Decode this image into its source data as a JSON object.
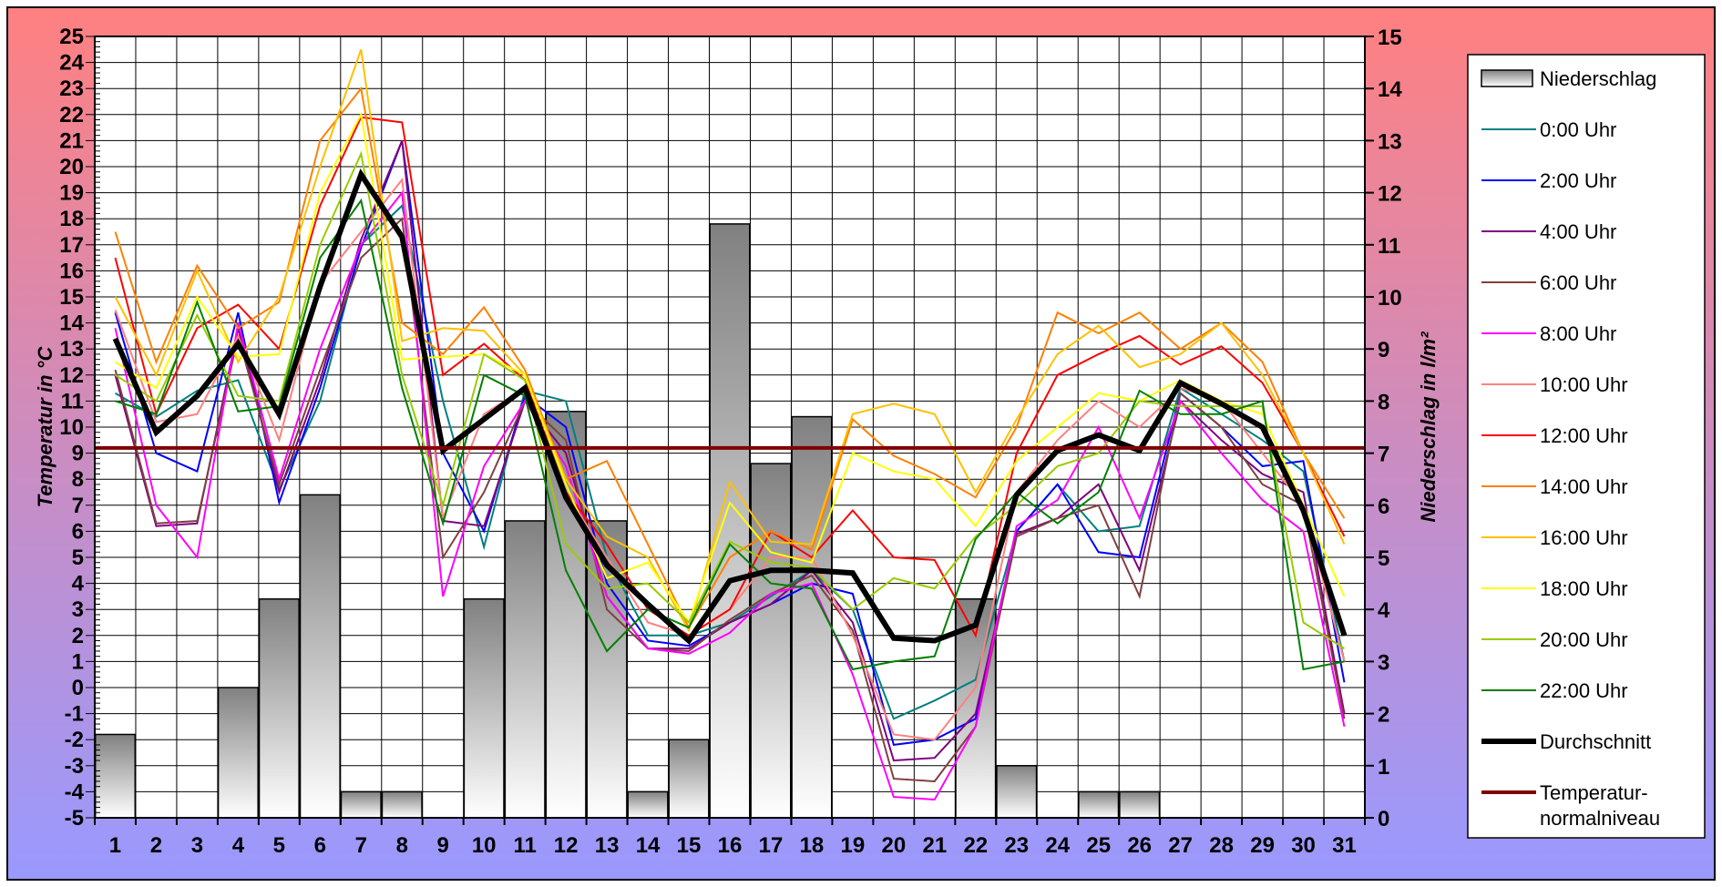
{
  "chart_data": {
    "type": "bar+line",
    "categories": [
      "1",
      "2",
      "3",
      "4",
      "5",
      "6",
      "7",
      "8",
      "9",
      "10",
      "11",
      "12",
      "13",
      "14",
      "15",
      "16",
      "17",
      "18",
      "19",
      "20",
      "21",
      "22",
      "23",
      "24",
      "25",
      "26",
      "27",
      "28",
      "29",
      "30",
      "31"
    ],
    "y_left": {
      "label": "Temperatur in °C",
      "min": -5,
      "max": 25,
      "step": 1
    },
    "y_right": {
      "label": "Niederschlag in l/m²",
      "min": 0,
      "max": 15,
      "step": 1
    },
    "precipitation": {
      "name": "Niederschlag",
      "axis": "right",
      "values": [
        1.6,
        0,
        0,
        2.5,
        4.2,
        6.2,
        0.5,
        0.5,
        0,
        4.2,
        5.7,
        7.8,
        5.7,
        0.5,
        1.5,
        11.4,
        6.8,
        7.7,
        0,
        0,
        0,
        4.2,
        1.0,
        0,
        0.5,
        0.5,
        0,
        0,
        0,
        0,
        0
      ]
    },
    "series": [
      {
        "name": "0:00 Uhr",
        "color": "#008080",
        "values": [
          11.3,
          10.4,
          11.4,
          11.8,
          7.6,
          11.0,
          17.0,
          18.5,
          11.0,
          5.4,
          11.4,
          11.0,
          5.0,
          2.0,
          2.0,
          2.5,
          3.5,
          4.5,
          3.0,
          -1.2,
          -0.5,
          0.3,
          6.0,
          7.8,
          6.0,
          6.2,
          11.5,
          10.5,
          9.5,
          8.3,
          1.0
        ]
      },
      {
        "name": "2:00 Uhr",
        "color": "#0000FF",
        "values": [
          14.4,
          9.0,
          8.3,
          14.4,
          7.1,
          11.5,
          16.9,
          21.0,
          9.0,
          6.0,
          11.2,
          10.0,
          4.0,
          1.8,
          1.6,
          2.5,
          3.2,
          4.0,
          3.6,
          -2.2,
          -2.0,
          -1.2,
          6.0,
          7.8,
          5.2,
          5.0,
          11.3,
          10.0,
          8.5,
          8.7,
          0.2
        ]
      },
      {
        "name": "4:00 Uhr",
        "color": "#800080",
        "values": [
          12.0,
          6.2,
          6.3,
          13.8,
          7.5,
          11.8,
          17.2,
          21.0,
          6.4,
          6.2,
          11.0,
          9.0,
          3.5,
          1.5,
          1.5,
          2.5,
          3.2,
          4.5,
          2.5,
          -2.8,
          -2.7,
          -1.0,
          5.9,
          6.5,
          7.8,
          4.5,
          11.0,
          9.5,
          8.2,
          7.5,
          -1.0
        ]
      },
      {
        "name": "6:00 Uhr",
        "color": "#804040",
        "values": [
          12.2,
          6.3,
          6.4,
          13.5,
          7.8,
          12.2,
          16.5,
          18.0,
          5.0,
          7.5,
          11.0,
          9.5,
          3.0,
          1.5,
          1.4,
          2.6,
          3.6,
          4.3,
          2.2,
          -3.5,
          -3.6,
          -1.5,
          5.8,
          6.5,
          7.0,
          3.5,
          11.3,
          10.0,
          7.8,
          7.0,
          -1.2
        ]
      },
      {
        "name": "8:00 Uhr",
        "color": "#FF00FF",
        "values": [
          13.8,
          7.0,
          5.0,
          14.0,
          8.0,
          13.0,
          17.0,
          19.0,
          3.5,
          8.5,
          11.0,
          8.5,
          3.5,
          1.5,
          1.3,
          2.1,
          3.6,
          4.0,
          0.5,
          -4.2,
          -4.3,
          -1.5,
          6.2,
          7.2,
          10.0,
          6.5,
          11.0,
          9.0,
          7.2,
          6.0,
          -1.5
        ]
      },
      {
        "name": "10:00 Uhr",
        "color": "#FF8080",
        "values": [
          14.5,
          10.2,
          10.5,
          13.5,
          9.5,
          15.5,
          17.5,
          19.5,
          6.5,
          10.5,
          11.5,
          7.5,
          5.0,
          2.5,
          2.0,
          3.0,
          5.0,
          5.0,
          2.0,
          -1.8,
          -2.0,
          0.0,
          7.5,
          9.5,
          11.0,
          10.0,
          11.5,
          11.0,
          9.0,
          7.0,
          1.0
        ]
      },
      {
        "name": "12:00 Uhr",
        "color": "#FF0000",
        "values": [
          16.5,
          10.5,
          13.8,
          14.7,
          13.0,
          18.5,
          21.9,
          21.7,
          12.0,
          13.2,
          11.8,
          7.5,
          5.5,
          3.0,
          2.0,
          3.0,
          6.0,
          5.0,
          6.8,
          5.0,
          4.9,
          2.0,
          9.0,
          12.0,
          12.8,
          13.5,
          12.4,
          13.1,
          11.7,
          9.0,
          5.8
        ]
      },
      {
        "name": "14:00 Uhr",
        "color": "#FF8000",
        "values": [
          17.5,
          12.5,
          16.2,
          13.8,
          14.8,
          21.0,
          23.0,
          14.0,
          12.8,
          14.6,
          12.2,
          8.0,
          8.7,
          5.5,
          2.3,
          5.0,
          6.0,
          5.3,
          10.3,
          8.9,
          8.2,
          7.3,
          10.0,
          14.4,
          13.6,
          14.4,
          13.0,
          14.0,
          12.5,
          9.0,
          6.5
        ]
      },
      {
        "name": "16:00 Uhr",
        "color": "#FFC000",
        "values": [
          15.0,
          12.0,
          16.0,
          12.5,
          15.0,
          20.0,
          24.5,
          13.3,
          13.8,
          13.7,
          12.0,
          8.0,
          5.8,
          5.0,
          2.2,
          7.9,
          5.6,
          5.5,
          10.5,
          10.9,
          10.5,
          7.5,
          10.3,
          12.8,
          13.9,
          12.3,
          12.8,
          14.0,
          12.0,
          9.0,
          5.5
        ]
      },
      {
        "name": "18:00 Uhr",
        "color": "#FFFF00",
        "values": [
          12.5,
          11.5,
          15.0,
          12.7,
          12.8,
          19.0,
          22.0,
          12.6,
          12.7,
          12.8,
          12.0,
          7.8,
          4.2,
          4.8,
          2.5,
          7.1,
          5.2,
          4.8,
          9.0,
          8.3,
          8.0,
          6.2,
          8.7,
          10.0,
          11.3,
          11.0,
          11.8,
          11.0,
          10.5,
          7.0,
          3.5
        ]
      },
      {
        "name": "20:00 Uhr",
        "color": "#99CC00",
        "values": [
          12.0,
          11.0,
          14.3,
          11.2,
          11.0,
          17.0,
          20.5,
          12.0,
          7.0,
          12.8,
          11.8,
          5.5,
          3.8,
          4.0,
          2.5,
          5.6,
          4.8,
          4.6,
          3.0,
          4.2,
          3.8,
          5.8,
          7.0,
          8.5,
          9.0,
          11.0,
          10.8,
          10.8,
          10.8,
          2.5,
          1.5
        ]
      },
      {
        "name": "22:00 Uhr",
        "color": "#008000",
        "values": [
          11.0,
          10.5,
          14.8,
          10.6,
          10.8,
          16.5,
          18.7,
          11.5,
          6.3,
          12.0,
          11.2,
          4.5,
          1.4,
          3.0,
          2.3,
          5.5,
          4.0,
          3.8,
          0.7,
          1.0,
          1.2,
          5.7,
          7.5,
          6.3,
          7.5,
          11.4,
          10.5,
          10.5,
          11.0,
          0.7,
          1.0
        ]
      },
      {
        "name": "Durchschnitt",
        "color": "#000000",
        "values": [
          13.4,
          9.8,
          11.2,
          13.2,
          10.5,
          15.4,
          19.7,
          17.3,
          9.1,
          10.3,
          11.5,
          7.3,
          4.7,
          3.2,
          1.8,
          4.1,
          4.5,
          4.5,
          4.4,
          1.9,
          1.8,
          2.4,
          7.4,
          9.1,
          9.7,
          9.1,
          11.7,
          10.9,
          10.0,
          6.8,
          2.0
        ]
      }
    ],
    "normal_line": {
      "name": "Temperatur-normalniveau",
      "legend_lines": [
        "Temperatur-",
        "normalniveau"
      ],
      "color": "#800000",
      "value": 9.2
    },
    "legend_position": "right",
    "grid": true
  },
  "legend": {
    "niederschlag": "Niederschlag",
    "durchschnitt": "Durchschnitt",
    "normal_line1": "Temperatur-",
    "normal_line2": "normalniveau"
  }
}
